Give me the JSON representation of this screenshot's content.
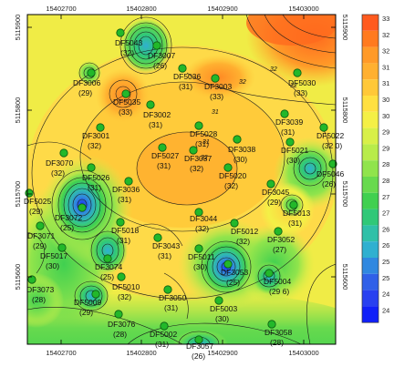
{
  "map": {
    "x_ticks": [
      "15402700",
      "15402800",
      "15402900",
      "15403000"
    ],
    "y_ticks_left": [
      "5115900",
      "5115800",
      "5115700",
      "5115600"
    ],
    "y_ticks_right": [
      "5115900",
      "5115800",
      "5115700",
      "5115600"
    ],
    "contour_labels": [
      "32",
      "32",
      "31",
      "32",
      "31",
      "32"
    ]
  },
  "colorbar": {
    "levels": [
      "33",
      "32",
      "32",
      "31",
      "31",
      "30",
      "30",
      "29",
      "29",
      "28",
      "28",
      "27",
      "27",
      "26",
      "26",
      "25",
      "25",
      "24",
      "24"
    ],
    "colors": [
      "#ff5a1e",
      "#ff7a1e",
      "#ff9a28",
      "#ffb030",
      "#ffc838",
      "#ffe040",
      "#f4f046",
      "#d8f048",
      "#b8ec4a",
      "#90e44c",
      "#68da4e",
      "#40d050",
      "#30c878",
      "#30c0a8",
      "#30b0d0",
      "#3088e0",
      "#3060e8",
      "#2840f0",
      "#1020f8"
    ]
  },
  "wells": [
    {
      "id": "DF5043",
      "value": "(32)"
    },
    {
      "id": "DF3007",
      "value": "(26)"
    },
    {
      "id": "DF5036",
      "value": "(31)"
    },
    {
      "id": "DF3003",
      "value": "(33)"
    },
    {
      "id": "DF5030",
      "value": "(33)"
    },
    {
      "id": "DF3006",
      "value": "(29)"
    },
    {
      "id": "DF5035",
      "value": "(33)"
    },
    {
      "id": "DF3002",
      "value": "(31)"
    },
    {
      "id": "DF3039",
      "value": "(31)"
    },
    {
      "id": "DF5022",
      "value": "(32 0)"
    },
    {
      "id": "DF3001",
      "value": "(32)"
    },
    {
      "id": "DF5028",
      "value": "(31)"
    },
    {
      "id": "DF3038",
      "value": "(30)"
    },
    {
      "id": "DF5021",
      "value": "(30)"
    },
    {
      "id": "DF3070",
      "value": "(32)"
    },
    {
      "id": "DF5027",
      "value": "(31)"
    },
    {
      "id": "DF3037",
      "value": "(32)"
    },
    {
      "id": "DF5046",
      "value": "(26)"
    },
    {
      "id": "DF5026",
      "value": "(31)"
    },
    {
      "id": "DF5020",
      "value": "(32)"
    },
    {
      "id": "DF3045",
      "value": "(29)"
    },
    {
      "id": "DF5025",
      "value": "(29)"
    },
    {
      "id": "DF3036",
      "value": "(31)"
    },
    {
      "id": "DF5013",
      "value": "(31)"
    },
    {
      "id": "DF3072",
      "value": "(25)"
    },
    {
      "id": "DF3044",
      "value": "(32)"
    },
    {
      "id": "DF5012",
      "value": "(32)"
    },
    {
      "id": "DF3071",
      "value": "(29)"
    },
    {
      "id": "DF5018",
      "value": "(31)"
    },
    {
      "id": "DF3043",
      "value": "(31)"
    },
    {
      "id": "DF3052",
      "value": "(27)"
    },
    {
      "id": "DF5017",
      "value": "(30)"
    },
    {
      "id": "DF3074",
      "value": "(25)"
    },
    {
      "id": "DF5011",
      "value": "(30)"
    },
    {
      "id": "DF3053",
      "value": "(25)"
    },
    {
      "id": "DF5010",
      "value": "(32)"
    },
    {
      "id": "DF5004",
      "value": "(29 6)"
    },
    {
      "id": "DF3073",
      "value": "(28)"
    },
    {
      "id": "DF3050",
      "value": "(31)"
    },
    {
      "id": "DF5009",
      "value": "(29)"
    },
    {
      "id": "DF5003",
      "value": "(30)"
    },
    {
      "id": "DF3076",
      "value": "(28)"
    },
    {
      "id": "DF5002",
      "value": "(31)"
    },
    {
      "id": "DF3058",
      "value": "(28)"
    },
    {
      "id": "DF3057",
      "value": "(26)"
    }
  ]
}
